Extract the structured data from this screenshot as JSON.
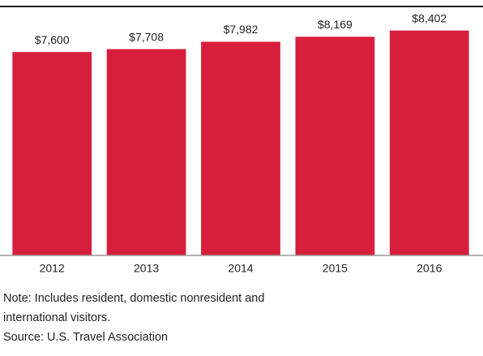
{
  "chart_data": {
    "type": "bar",
    "categories": [
      "2012",
      "2013",
      "2014",
      "2015",
      "2016"
    ],
    "values": [
      7600,
      7708,
      7982,
      8169,
      8402
    ],
    "value_labels": [
      "$7,600",
      "$7,708",
      "$7,982",
      "$8,169",
      "$8,402"
    ],
    "color": "#d71f3d",
    "ylim": [
      0,
      9300
    ],
    "note": "Note: Includes resident, domestic nonresident and international visitors.",
    "source": "Source: U.S. Travel Association"
  }
}
